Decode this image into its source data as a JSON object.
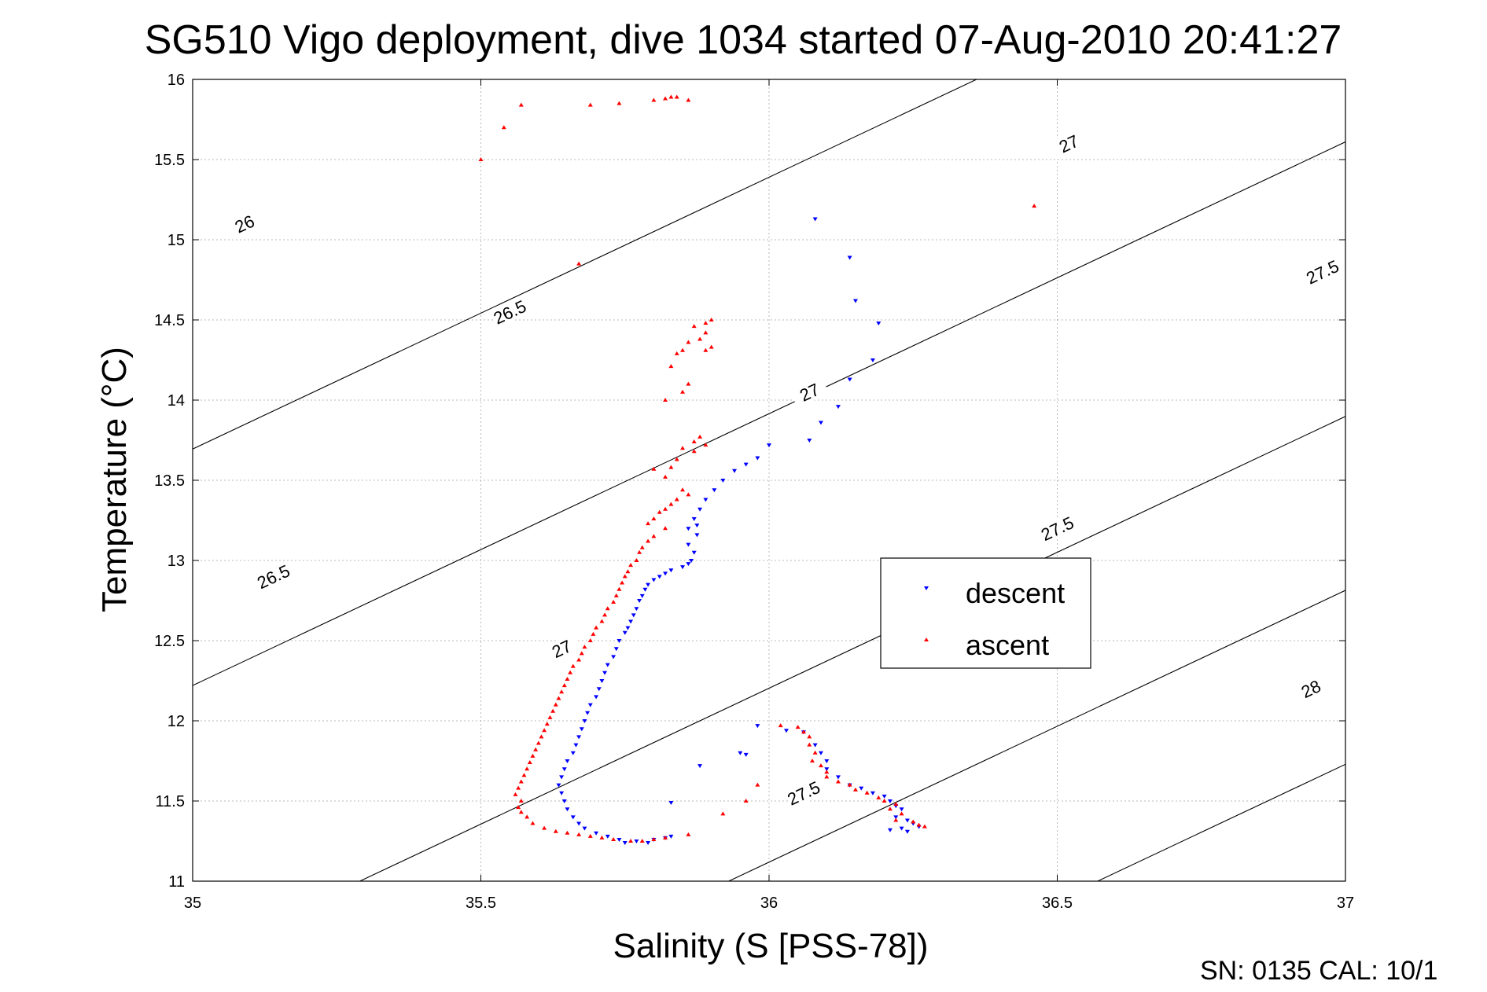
{
  "chart_data": {
    "type": "scatter",
    "title": "SG510 Vigo deployment, dive 1034 started 07-Aug-2010 20:41:27",
    "xlabel": "Salinity (S [PSS-78])",
    "ylabel": "Temperature (°C)",
    "xlim": [
      35,
      37
    ],
    "ylim": [
      11,
      16
    ],
    "x_ticks": [
      "35",
      "35.5",
      "36",
      "36.5",
      "37"
    ],
    "y_ticks": [
      "11",
      "11.5",
      "12",
      "12.5",
      "13",
      "13.5",
      "14",
      "14.5",
      "15",
      "15.5",
      "16"
    ],
    "grid": true,
    "legend_position": "inside-lower-right",
    "footer": "SN: 0135  CAL: 10/1",
    "density_contours": [
      {
        "label": "26",
        "S_at_T11": 33.41,
        "label_at": [
          35.09,
          15.1
        ]
      },
      {
        "label": "26.5",
        "S_at_T11": 34.28,
        "label_at": [
          35.55,
          14.55
        ],
        "label_at2": [
          35.14,
          12.9
        ]
      },
      {
        "label": "27",
        "S_at_T11": 35.29,
        "label_at": [
          36.52,
          15.6
        ],
        "label_at2": [
          36.07,
          14.05
        ],
        "label_at3": [
          35.64,
          12.45
        ]
      },
      {
        "label": "27.5",
        "S_at_T11": 35.93,
        "label_at": [
          36.96,
          14.8
        ],
        "label_at2": [
          36.5,
          13.2
        ],
        "label_at3": [
          36.06,
          11.55
        ]
      },
      {
        "label": "28",
        "S_at_T11": 36.57,
        "label_at": [
          36.94,
          12.2
        ]
      }
    ],
    "series": [
      {
        "name": "descent",
        "color": "#0000ff",
        "marker": "triangle-down",
        "points": [
          [
            36.08,
            15.13
          ],
          [
            36.14,
            14.89
          ],
          [
            36.15,
            14.62
          ],
          [
            36.19,
            14.48
          ],
          [
            36.18,
            14.25
          ],
          [
            36.14,
            14.13
          ],
          [
            36.12,
            13.96
          ],
          [
            36.09,
            13.86
          ],
          [
            36.07,
            13.75
          ],
          [
            36.0,
            13.72
          ],
          [
            35.98,
            13.64
          ],
          [
            35.96,
            13.6
          ],
          [
            35.94,
            13.56
          ],
          [
            35.92,
            13.5
          ],
          [
            35.905,
            13.44
          ],
          [
            35.89,
            13.38
          ],
          [
            35.88,
            13.32
          ],
          [
            35.87,
            13.26
          ],
          [
            35.875,
            13.22
          ],
          [
            35.86,
            13.2
          ],
          [
            35.875,
            13.16
          ],
          [
            35.86,
            13.1
          ],
          [
            35.87,
            13.05
          ],
          [
            35.865,
            13.0
          ],
          [
            35.86,
            12.98
          ],
          [
            35.85,
            12.96
          ],
          [
            35.83,
            12.94
          ],
          [
            35.82,
            12.92
          ],
          [
            35.81,
            12.9
          ],
          [
            35.8,
            12.88
          ],
          [
            35.79,
            12.85
          ],
          [
            35.785,
            12.82
          ],
          [
            35.78,
            12.78
          ],
          [
            35.775,
            12.75
          ],
          [
            35.77,
            12.7
          ],
          [
            35.765,
            12.66
          ],
          [
            35.76,
            12.62
          ],
          [
            35.755,
            12.58
          ],
          [
            35.75,
            12.55
          ],
          [
            35.74,
            12.5
          ],
          [
            35.735,
            12.45
          ],
          [
            35.73,
            12.4
          ],
          [
            35.72,
            12.35
          ],
          [
            35.715,
            12.3
          ],
          [
            35.71,
            12.25
          ],
          [
            35.705,
            12.2
          ],
          [
            35.7,
            12.15
          ],
          [
            35.69,
            12.1
          ],
          [
            35.685,
            12.05
          ],
          [
            35.68,
            12.0
          ],
          [
            35.675,
            11.95
          ],
          [
            35.67,
            11.9
          ],
          [
            35.665,
            11.85
          ],
          [
            35.66,
            11.8
          ],
          [
            35.65,
            11.75
          ],
          [
            35.645,
            11.7
          ],
          [
            35.64,
            11.65
          ],
          [
            35.635,
            11.6
          ],
          [
            35.64,
            11.55
          ],
          [
            35.645,
            11.5
          ],
          [
            35.65,
            11.45
          ],
          [
            35.66,
            11.4
          ],
          [
            35.67,
            11.36
          ],
          [
            35.68,
            11.33
          ],
          [
            35.7,
            11.3
          ],
          [
            35.72,
            11.28
          ],
          [
            35.74,
            11.26
          ],
          [
            35.75,
            11.24
          ],
          [
            35.77,
            11.25
          ],
          [
            35.79,
            11.24
          ],
          [
            35.8,
            11.26
          ],
          [
            35.82,
            11.27
          ],
          [
            35.83,
            11.49
          ],
          [
            35.83,
            11.28
          ],
          [
            35.88,
            11.72
          ],
          [
            35.95,
            11.8
          ],
          [
            35.96,
            11.79
          ],
          [
            35.98,
            11.97
          ],
          [
            36.03,
            11.94
          ],
          [
            36.06,
            11.93
          ],
          [
            36.08,
            11.85
          ],
          [
            36.09,
            11.8
          ],
          [
            36.1,
            11.75
          ],
          [
            36.1,
            11.7
          ],
          [
            36.12,
            11.65
          ],
          [
            36.14,
            11.6
          ],
          [
            36.16,
            11.58
          ],
          [
            36.18,
            11.55
          ],
          [
            36.2,
            11.53
          ],
          [
            36.21,
            11.5
          ],
          [
            36.22,
            11.47
          ],
          [
            36.23,
            11.45
          ],
          [
            36.22,
            11.4
          ],
          [
            36.24,
            11.38
          ],
          [
            36.25,
            11.36
          ],
          [
            36.23,
            11.33
          ],
          [
            36.26,
            11.34
          ],
          [
            36.21,
            11.32
          ],
          [
            36.24,
            11.31
          ]
        ]
      },
      {
        "name": "ascent",
        "color": "#ff0000",
        "marker": "triangle-up",
        "points": [
          [
            35.83,
            15.89
          ],
          [
            35.84,
            15.89
          ],
          [
            35.82,
            15.88
          ],
          [
            35.86,
            15.87
          ],
          [
            35.8,
            15.87
          ],
          [
            35.74,
            15.85
          ],
          [
            35.69,
            15.84
          ],
          [
            35.57,
            15.84
          ],
          [
            35.54,
            15.7
          ],
          [
            35.5,
            15.5
          ],
          [
            36.46,
            15.21
          ],
          [
            35.67,
            14.85
          ],
          [
            35.9,
            14.5
          ],
          [
            35.89,
            14.48
          ],
          [
            35.87,
            14.46
          ],
          [
            35.89,
            14.42
          ],
          [
            35.88,
            14.38
          ],
          [
            35.86,
            14.36
          ],
          [
            35.9,
            14.33
          ],
          [
            35.85,
            14.31
          ],
          [
            35.89,
            14.31
          ],
          [
            35.84,
            14.29
          ],
          [
            35.83,
            14.21
          ],
          [
            35.86,
            14.1
          ],
          [
            35.85,
            14.05
          ],
          [
            35.82,
            14.0
          ],
          [
            35.88,
            13.77
          ],
          [
            35.87,
            13.74
          ],
          [
            35.89,
            13.72
          ],
          [
            35.85,
            13.7
          ],
          [
            35.87,
            13.68
          ],
          [
            35.84,
            13.63
          ],
          [
            35.83,
            13.58
          ],
          [
            35.8,
            13.57
          ],
          [
            35.82,
            13.52
          ],
          [
            35.85,
            13.44
          ],
          [
            35.86,
            13.41
          ],
          [
            35.84,
            13.38
          ],
          [
            35.83,
            13.35
          ],
          [
            35.82,
            13.32
          ],
          [
            35.81,
            13.3
          ],
          [
            35.8,
            13.26
          ],
          [
            35.79,
            13.23
          ],
          [
            35.82,
            13.2
          ],
          [
            35.8,
            13.15
          ],
          [
            35.79,
            13.12
          ],
          [
            35.78,
            13.08
          ],
          [
            35.775,
            13.05
          ],
          [
            35.77,
            13.0
          ],
          [
            35.76,
            12.97
          ],
          [
            35.755,
            12.93
          ],
          [
            35.75,
            12.9
          ],
          [
            35.745,
            12.86
          ],
          [
            35.74,
            12.82
          ],
          [
            35.735,
            12.78
          ],
          [
            35.73,
            12.74
          ],
          [
            35.72,
            12.7
          ],
          [
            35.715,
            12.66
          ],
          [
            35.71,
            12.62
          ],
          [
            35.7,
            12.58
          ],
          [
            35.695,
            12.54
          ],
          [
            35.69,
            12.5
          ],
          [
            35.68,
            12.46
          ],
          [
            35.675,
            12.42
          ],
          [
            35.67,
            12.38
          ],
          [
            35.66,
            12.34
          ],
          [
            35.655,
            12.3
          ],
          [
            35.65,
            12.26
          ],
          [
            35.645,
            12.22
          ],
          [
            35.64,
            12.18
          ],
          [
            35.635,
            12.14
          ],
          [
            35.63,
            12.1
          ],
          [
            35.625,
            12.06
          ],
          [
            35.62,
            12.02
          ],
          [
            35.615,
            11.98
          ],
          [
            35.61,
            11.94
          ],
          [
            35.605,
            11.9
          ],
          [
            35.6,
            11.86
          ],
          [
            35.595,
            11.82
          ],
          [
            35.59,
            11.78
          ],
          [
            35.585,
            11.74
          ],
          [
            35.58,
            11.7
          ],
          [
            35.575,
            11.66
          ],
          [
            35.57,
            11.62
          ],
          [
            35.565,
            11.58
          ],
          [
            35.56,
            11.54
          ],
          [
            35.57,
            11.5
          ],
          [
            35.565,
            11.46
          ],
          [
            35.57,
            11.43
          ],
          [
            35.58,
            11.4
          ],
          [
            35.59,
            11.36
          ],
          [
            35.61,
            11.33
          ],
          [
            35.63,
            11.31
          ],
          [
            35.65,
            11.3
          ],
          [
            35.67,
            11.29
          ],
          [
            35.69,
            11.28
          ],
          [
            35.71,
            11.27
          ],
          [
            35.73,
            11.26
          ],
          [
            35.76,
            11.25
          ],
          [
            35.78,
            11.25
          ],
          [
            35.8,
            11.26
          ],
          [
            35.82,
            11.27
          ],
          [
            35.86,
            11.29
          ],
          [
            35.92,
            11.42
          ],
          [
            35.96,
            11.5
          ],
          [
            35.98,
            11.6
          ],
          [
            36.02,
            11.97
          ],
          [
            36.05,
            11.96
          ],
          [
            36.06,
            11.93
          ],
          [
            36.07,
            11.9
          ],
          [
            36.07,
            11.85
          ],
          [
            36.08,
            11.8
          ],
          [
            36.075,
            11.75
          ],
          [
            36.09,
            11.72
          ],
          [
            36.1,
            11.68
          ],
          [
            36.1,
            11.65
          ],
          [
            36.12,
            11.62
          ],
          [
            36.14,
            11.6
          ],
          [
            36.15,
            11.57
          ],
          [
            36.17,
            11.55
          ],
          [
            36.19,
            11.52
          ],
          [
            36.2,
            11.5
          ],
          [
            36.22,
            11.48
          ],
          [
            36.21,
            11.45
          ],
          [
            36.23,
            11.42
          ],
          [
            36.22,
            11.38
          ],
          [
            36.25,
            11.37
          ],
          [
            36.26,
            11.35
          ],
          [
            36.27,
            11.34
          ]
        ]
      }
    ]
  }
}
